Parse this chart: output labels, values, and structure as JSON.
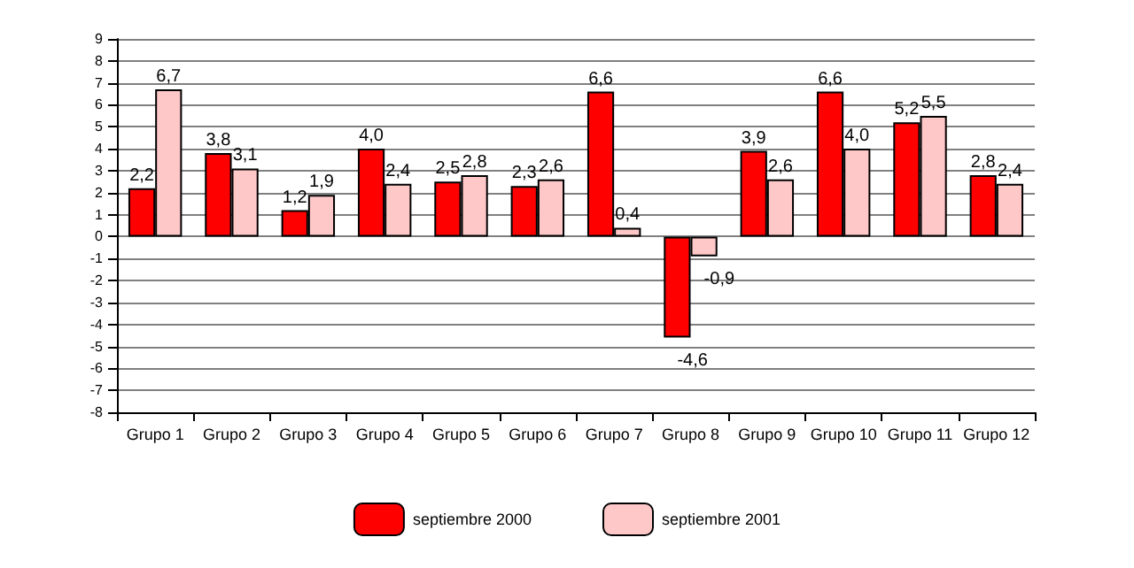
{
  "chart_data": {
    "type": "bar",
    "categories": [
      "Grupo 1",
      "Grupo 2",
      "Grupo 3",
      "Grupo 4",
      "Grupo 5",
      "Grupo 6",
      "Grupo 7",
      "Grupo 8",
      "Grupo 9",
      "Grupo 10",
      "Grupo 11",
      "Grupo 12"
    ],
    "series": [
      {
        "name": "septiembre 2000",
        "color": "#ff0000",
        "values": [
          2.2,
          3.8,
          1.2,
          4.0,
          2.5,
          2.3,
          6.6,
          -4.6,
          3.9,
          6.6,
          5.2,
          2.8
        ],
        "value_labels": [
          "2,2",
          "3,8",
          "1,2",
          "4,0",
          "2,5",
          "2,3",
          "6,6",
          "-4,6",
          "3,9",
          "6,6",
          "5,2",
          "2,8"
        ]
      },
      {
        "name": "septiembre 2001",
        "color": "#ffc8c8",
        "values": [
          6.7,
          3.1,
          1.9,
          2.4,
          2.8,
          2.6,
          0.4,
          -0.9,
          2.6,
          4.0,
          5.5,
          2.4
        ],
        "value_labels": [
          "6,7",
          "3,1",
          "1,9",
          "2,4",
          "2,8",
          "2,6",
          "0,4",
          "-0,9",
          "2,6",
          "4,0",
          "5,5",
          "2,4"
        ]
      }
    ],
    "ylim": [
      -8,
      9
    ],
    "yticks": [
      -8,
      -7,
      -6,
      -5,
      -4,
      -3,
      -2,
      -1,
      0,
      1,
      2,
      3,
      4,
      5,
      6,
      7,
      8,
      9
    ],
    "grid": "y",
    "legend": "bottom"
  }
}
